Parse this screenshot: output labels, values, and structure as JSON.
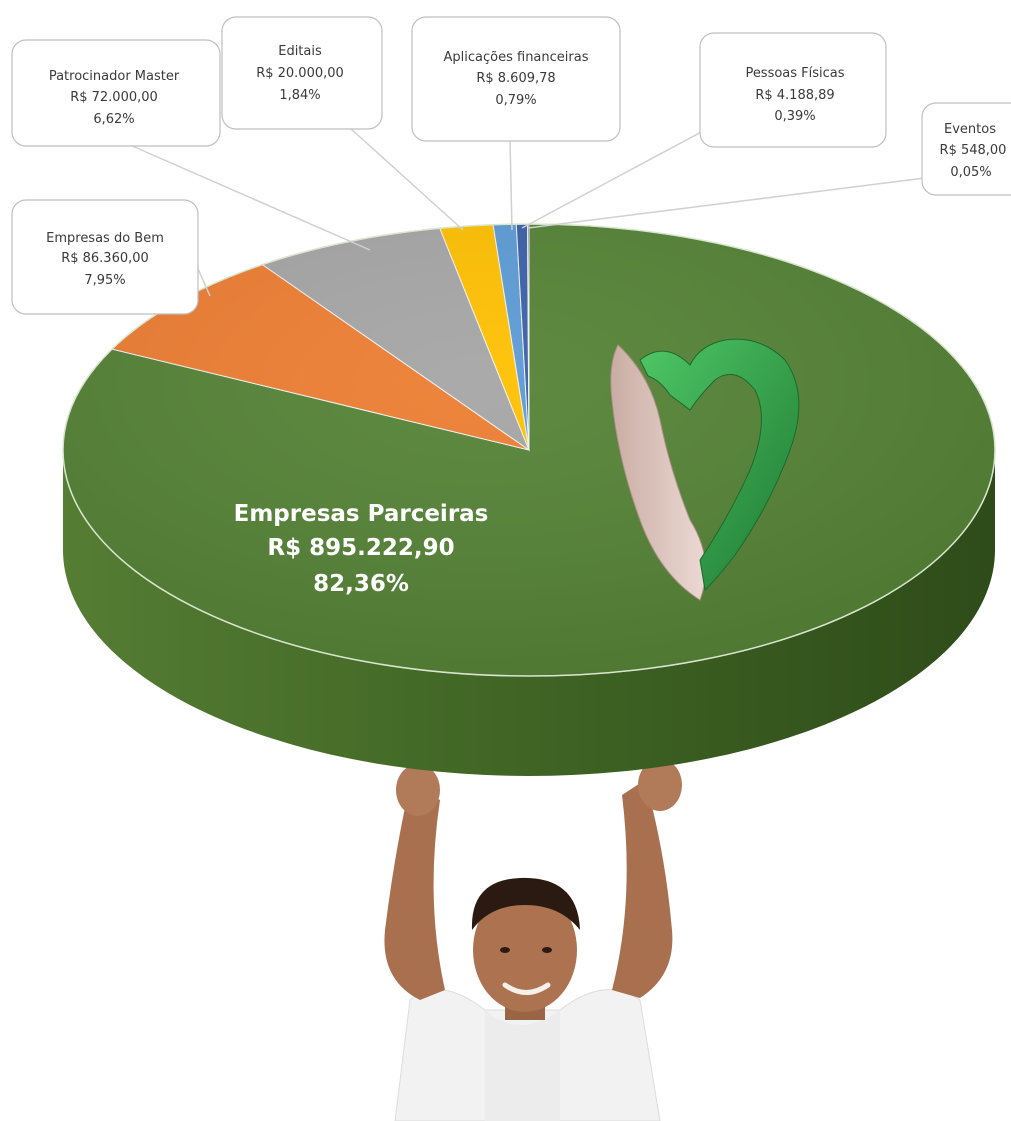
{
  "chart_data": {
    "type": "pie",
    "title": "",
    "slices": [
      {
        "label": "Empresas Parceiras",
        "amount": "R$ 895.222,90",
        "percent_text": "82,36%",
        "value": 895222.9,
        "percent": 82.36,
        "color": "#548235"
      },
      {
        "label": "Empresas do Bem",
        "amount": "R$ 86.360,00",
        "percent_text": "7,95%",
        "value": 86360.0,
        "percent": 7.95,
        "color": "#ed7d31"
      },
      {
        "label": "Patrocinador Master",
        "amount": "R$ 72.000,00",
        "percent_text": "6,62%",
        "value": 72000.0,
        "percent": 6.62,
        "color": "#a5a5a5"
      },
      {
        "label": "Editais",
        "amount": "R$ 20.000,00",
        "percent_text": "1,84%",
        "value": 20000.0,
        "percent": 1.84,
        "color": "#ffc000"
      },
      {
        "label": "Aplicações financeiras",
        "amount": "R$ 8.609,78",
        "percent_text": "0,79%",
        "value": 8609.78,
        "percent": 0.79,
        "color": "#5b9bd5"
      },
      {
        "label": "Pessoas Físicas",
        "amount": "R$ 4.188,89",
        "percent_text": "0,39%",
        "value": 4188.89,
        "percent": 0.39,
        "color": "#3a5fa8"
      },
      {
        "label": "Eventos",
        "amount": "R$ 548,00",
        "percent_text": "0,05%",
        "value": 548.0,
        "percent": 0.05,
        "color": "#7030a0"
      }
    ]
  },
  "colors": {
    "pie_side": "#3e6323",
    "callout_border": "#bfbfbf",
    "heart_green": "#2f9a45",
    "heart_body": "#d9bfb7",
    "child_shirt": "#f4f4f4",
    "child_skin": "#a8704f"
  },
  "icons": {
    "logo": "heart-leaf-logo",
    "illustration": "child-holding-chart"
  }
}
